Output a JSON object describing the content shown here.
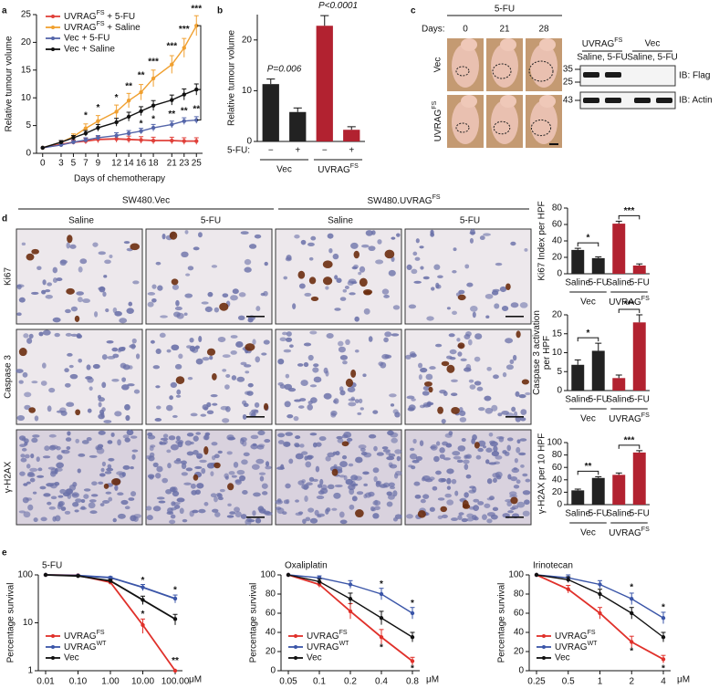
{
  "panel_labels": [
    "a",
    "b",
    "c",
    "d",
    "e"
  ],
  "chart_data": [
    {
      "type": "line",
      "x": [
        0,
        3,
        5,
        7,
        9,
        12,
        14,
        16,
        18,
        21,
        23,
        25
      ],
      "xlim": [
        -1,
        26
      ],
      "xticks": [
        0,
        3,
        5,
        7,
        9,
        12,
        14,
        16,
        18,
        21,
        23,
        25
      ],
      "ylim": [
        0,
        25
      ],
      "yticks": [
        0,
        5,
        10,
        15,
        20,
        25
      ],
      "xlabel": "Days of chemotherapy",
      "ylabel": [
        "Relative tumour volume"
      ],
      "legend": "top-left",
      "series": [
        {
          "name": "UVRAGFS + 5-FU",
          "color": "#e0403a",
          "values": [
            1,
            1.6,
            2,
            2.2,
            2.5,
            2.6,
            2.5,
            2.4,
            2.3,
            2.3,
            2.2,
            2.2
          ],
          "errors": [
            0,
            0.3,
            0.4,
            0.5,
            0.6,
            0.6,
            0.6,
            0.6,
            0.6,
            0.6,
            0.6,
            0.6
          ]
        },
        {
          "name": "UVRAGFS + Saline",
          "color": "#f0a030",
          "values": [
            1,
            2,
            3,
            4.5,
            5.8,
            7.5,
            9.5,
            11,
            13.5,
            16,
            19,
            23
          ],
          "errors": [
            0,
            0.3,
            0.5,
            0.8,
            1,
            1.2,
            1.3,
            1.4,
            1.5,
            1.6,
            1.7,
            1.8
          ]
        },
        {
          "name": "Vec + 5-FU",
          "color": "#5566aa",
          "values": [
            1,
            1.5,
            2,
            2.4,
            2.8,
            3.2,
            3.6,
            4,
            4.6,
            5.2,
            5.8,
            6
          ],
          "errors": [
            0,
            0.2,
            0.3,
            0.4,
            0.4,
            0.5,
            0.5,
            0.5,
            0.6,
            0.6,
            0.6,
            0.6
          ]
        },
        {
          "name": "Vec + Saline",
          "color": "#111111",
          "values": [
            1,
            2,
            2.8,
            3.6,
            4.6,
            5.6,
            6.6,
            7.6,
            8.6,
            9.6,
            10.6,
            11.5
          ],
          "errors": [
            0,
            0.3,
            0.4,
            0.5,
            0.6,
            0.7,
            0.8,
            0.8,
            0.9,
            0.9,
            1,
            1
          ]
        }
      ],
      "annotations": [
        {
          "x": 7,
          "y": 6.8,
          "text": "*"
        },
        {
          "x": 9,
          "y": 8.2,
          "text": "*"
        },
        {
          "x": 12,
          "y": 10,
          "text": "*"
        },
        {
          "x": 14,
          "y": 12,
          "text": "**"
        },
        {
          "x": 16,
          "y": 14,
          "text": "**"
        },
        {
          "x": 18,
          "y": 16.5,
          "text": "***"
        },
        {
          "x": 21,
          "y": 19.3,
          "text": "***"
        },
        {
          "x": 23,
          "y": 22.3,
          "text": "***"
        },
        {
          "x": 25,
          "y": 26,
          "text": "***"
        },
        {
          "x": 16,
          "y": 5.3,
          "text": "*"
        },
        {
          "x": 18,
          "y": 6.1,
          "text": "*"
        },
        {
          "x": 21,
          "y": 7,
          "text": "**"
        },
        {
          "x": 23,
          "y": 7.6,
          "text": "**"
        },
        {
          "x": 25,
          "y": 7.9,
          "text": "**"
        }
      ]
    },
    {
      "type": "bar",
      "categories": [
        "−",
        "+",
        "−",
        "+"
      ],
      "category_label": "5-FU:",
      "values": [
        11.3,
        5.8,
        22.8,
        2.3
      ],
      "errors": [
        1,
        0.8,
        2,
        0.6
      ],
      "colors": [
        "#222222",
        "#222222",
        "#b22230",
        "#b22230"
      ],
      "groups": [
        "Vec",
        "UVRAGFS"
      ],
      "significance": [
        "P=0.006",
        "P<0.0001"
      ],
      "brackets": false,
      "ylim": [
        0,
        25
      ],
      "yticks": [
        0,
        10,
        20
      ],
      "ylabel": [
        "Relative tumour volume"
      ]
    },
    {
      "type": "bar",
      "categories": [
        "Saline",
        "5-FU",
        "Saline",
        "5-FU"
      ],
      "values": [
        29,
        19,
        61,
        10
      ],
      "errors": [
        2,
        1.5,
        3,
        2
      ],
      "colors": [
        "#222222",
        "#222222",
        "#b22230",
        "#b22230"
      ],
      "groups": [
        "Vec",
        "UVRAGFS"
      ],
      "significance": [
        "*",
        "***"
      ],
      "brackets": true,
      "ylim": [
        0,
        80
      ],
      "yticks": [
        0,
        20,
        40,
        60,
        80
      ],
      "ylabel": [
        "Ki67 Index per HPF"
      ]
    },
    {
      "type": "bar",
      "categories": [
        "Saline",
        "5-FU",
        "Saline",
        "5-FU"
      ],
      "values": [
        6.8,
        10.5,
        3.3,
        18
      ],
      "errors": [
        1.3,
        2,
        0.8,
        2
      ],
      "colors": [
        "#222222",
        "#222222",
        "#b22230",
        "#b22230"
      ],
      "groups": [
        "Vec",
        "UVRAGFS"
      ],
      "significance": [
        "*",
        "***"
      ],
      "brackets": true,
      "ylim": [
        0,
        20
      ],
      "yticks": [
        0,
        5,
        10,
        15,
        20
      ],
      "ylabel": [
        "Caspase 3 activation",
        "per HPF"
      ]
    },
    {
      "type": "bar",
      "categories": [
        "Saline",
        "5-FU",
        "Saline",
        "5-FU"
      ],
      "values": [
        23,
        43,
        48,
        84
      ],
      "errors": [
        2,
        2,
        3,
        3
      ],
      "colors": [
        "#222222",
        "#222222",
        "#b22230",
        "#b22230"
      ],
      "groups": [
        "Vec",
        "UVRAGFS"
      ],
      "significance": [
        "**",
        "***"
      ],
      "brackets": true,
      "ylim": [
        0,
        100
      ],
      "yticks": [
        0,
        20,
        40,
        60,
        80,
        100
      ],
      "ylabel": [
        "γ-H2AX per 10 HPF"
      ]
    },
    {
      "type": "line",
      "title": "5-FU",
      "categories": [
        "0.01",
        "0.10",
        "1.00",
        "10.00",
        "100.00"
      ],
      "unit": "μM",
      "log_y": true,
      "ylim": [
        1,
        100
      ],
      "yticks": [
        1,
        10,
        100
      ],
      "ylabel": [
        "Percentage survival"
      ],
      "legend": "bottom-left",
      "series": [
        {
          "name": "UVRAGFS",
          "color": "#e0302a",
          "values": [
            100,
            98,
            70,
            9,
            1
          ],
          "errors": [
            0,
            2,
            6,
            3,
            0
          ]
        },
        {
          "name": "UVRAGWT",
          "color": "#3a55a8",
          "values": [
            100,
            97,
            88,
            55,
            32
          ],
          "errors": [
            0,
            2,
            4,
            8,
            6
          ]
        },
        {
          "name": "Vec",
          "color": "#111111",
          "values": [
            100,
            95,
            75,
            30,
            12
          ],
          "errors": [
            0,
            3,
            6,
            6,
            3
          ]
        }
      ],
      "annotations": [
        {
          "x": "10.00",
          "y": 75,
          "text": "*"
        },
        {
          "x": "10.00",
          "y": 15,
          "text": "*"
        },
        {
          "x": "100.00",
          "y": 48,
          "text": "*"
        },
        {
          "x": "100.00",
          "y": 1.6,
          "text": "**"
        }
      ]
    },
    {
      "type": "line",
      "title": "Oxaliplatin",
      "categories": [
        "0.05",
        "0.1",
        "0.2",
        "0.4",
        "0.8"
      ],
      "unit": "μM",
      "ylim": [
        0,
        100
      ],
      "yticks": [
        0,
        20,
        40,
        60,
        80,
        100
      ],
      "ylabel": [
        "Percentage survival"
      ],
      "legend": "bottom-left",
      "series": [
        {
          "name": "UVRAGFS",
          "color": "#e0302a",
          "values": [
            100,
            90,
            62,
            35,
            10
          ],
          "errors": [
            0,
            3,
            8,
            8,
            4
          ]
        },
        {
          "name": "UVRAGWT",
          "color": "#3a55a8",
          "values": [
            100,
            97,
            90,
            80,
            60
          ],
          "errors": [
            0,
            2,
            4,
            6,
            6
          ]
        },
        {
          "name": "Vec",
          "color": "#111111",
          "values": [
            100,
            93,
            75,
            55,
            35
          ],
          "errors": [
            0,
            3,
            6,
            7,
            5
          ]
        }
      ],
      "annotations": [
        {
          "x": "0.4",
          "y": 90,
          "text": "*"
        },
        {
          "x": "0.4",
          "y": 24,
          "text": "*"
        },
        {
          "x": "0.8",
          "y": 70,
          "text": "*"
        },
        {
          "x": "0.8",
          "y": 2,
          "text": "*"
        }
      ]
    },
    {
      "type": "line",
      "title": "Irinotecan",
      "categories": [
        "0.25",
        "0.5",
        "1",
        "2",
        "4"
      ],
      "unit": "μM",
      "ylim": [
        0,
        100
      ],
      "yticks": [
        0,
        20,
        40,
        60,
        80,
        100
      ],
      "ylabel": [
        "Percentage survival"
      ],
      "legend": "bottom-left",
      "series": [
        {
          "name": "UVRAGFS",
          "color": "#e0302a",
          "values": [
            100,
            85,
            60,
            30,
            12
          ],
          "errors": [
            0,
            4,
            6,
            6,
            4
          ]
        },
        {
          "name": "UVRAGWT",
          "color": "#3a55a8",
          "values": [
            100,
            97,
            90,
            75,
            55
          ],
          "errors": [
            0,
            3,
            4,
            6,
            6
          ]
        },
        {
          "name": "Vec",
          "color": "#111111",
          "values": [
            100,
            95,
            80,
            60,
            35
          ],
          "errors": [
            0,
            3,
            5,
            6,
            5
          ]
        }
      ],
      "annotations": [
        {
          "x": "2",
          "y": 87,
          "text": "*"
        },
        {
          "x": "2",
          "y": 20,
          "text": "*"
        },
        {
          "x": "4",
          "y": 66,
          "text": "*"
        },
        {
          "x": "4",
          "y": 2,
          "text": "*"
        }
      ]
    }
  ],
  "panel_c": {
    "title": "5-FU",
    "days_label": "Days:",
    "days": [
      "0",
      "21",
      "28"
    ],
    "rows": [
      "Vec",
      "UVRAGFS"
    ],
    "blot": {
      "groups": [
        "UVRAGFS",
        "Vec"
      ],
      "lanes": [
        "Saline, 5-FU",
        "Saline, 5-FU"
      ],
      "markers": [
        "35",
        "25",
        "43"
      ],
      "probes": [
        "IB: Flag",
        "IB: Actin"
      ]
    }
  },
  "panel_d": {
    "groups": [
      "SW480.Vec",
      "SW480.UVRAGFS"
    ],
    "columns": [
      "Saline",
      "5-FU",
      "Saline",
      "5-FU"
    ],
    "rows": [
      "Ki67",
      "Caspase 3",
      "γ-H2AX"
    ]
  }
}
